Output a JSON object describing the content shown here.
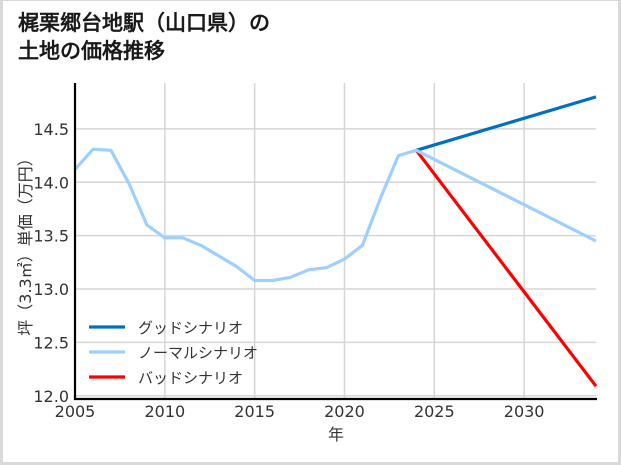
{
  "title_lines": [
    "梶栗郷台地駅（山口県）の",
    "土地の価格推移"
  ],
  "chart_data": {
    "type": "line",
    "title": "梶栗郷台地駅（山口県）の土地の価格推移",
    "xlabel": "年",
    "ylabel": "坪（3.3㎡）単価（万円）",
    "xlim": [
      2005,
      2034
    ],
    "ylim": [
      11.97,
      14.93
    ],
    "xticks": [
      2005,
      2010,
      2015,
      2020,
      2025,
      2030
    ],
    "xtick_labels": [
      "2005",
      "2010",
      "2015",
      "2020",
      "2025",
      "2030"
    ],
    "yticks": [
      12.0,
      12.5,
      13.0,
      13.5,
      14.0,
      14.5
    ],
    "ytick_labels": [
      "12.0",
      "12.5",
      "13.0",
      "13.5",
      "14.0",
      "14.5"
    ],
    "grid": true,
    "legend_position": "lower left",
    "series": [
      {
        "name": "グッドシナリオ",
        "color": "#0070C0",
        "x": [
          2024,
          2034
        ],
        "y": [
          14.3,
          14.8
        ]
      },
      {
        "name": "ノーマルシナリオ",
        "color": "#9DCFFF",
        "x": [
          2005,
          2006,
          2007,
          2008,
          2009,
          2010,
          2011,
          2012,
          2013,
          2014,
          2015,
          2016,
          2017,
          2018,
          2019,
          2020,
          2021,
          2022,
          2023,
          2024,
          2034
        ],
        "y": [
          14.12,
          14.31,
          14.3,
          13.99,
          13.6,
          13.48,
          13.48,
          13.41,
          13.31,
          13.21,
          13.08,
          13.08,
          13.11,
          13.18,
          13.2,
          13.28,
          13.41,
          13.85,
          14.25,
          14.3,
          13.45
        ]
      },
      {
        "name": "バッドシナリオ",
        "color": "#FF0000",
        "x": [
          2024,
          2034
        ],
        "y": [
          14.3,
          12.09
        ]
      }
    ]
  }
}
